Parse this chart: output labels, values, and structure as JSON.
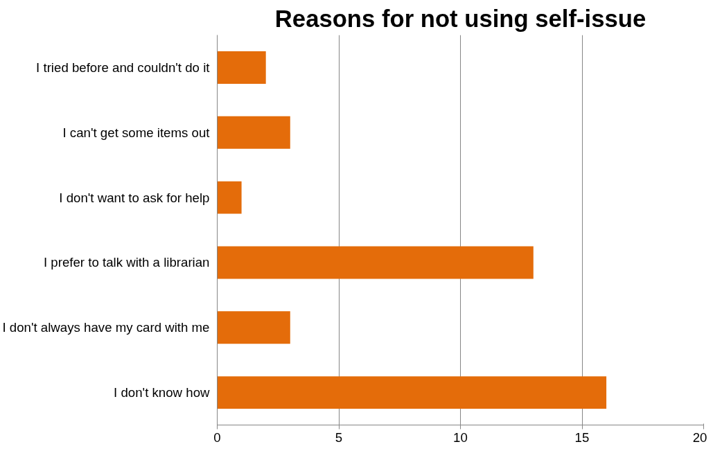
{
  "chart_data": {
    "type": "bar",
    "orientation": "horizontal",
    "title": "Reasons for not using self-issue",
    "categories": [
      "I tried before and couldn't do it",
      "I can't get some items out",
      "I don't want to ask for help",
      "I prefer to talk with a librarian",
      "I don't always have my card with me",
      "I don't know how"
    ],
    "values": [
      2,
      3,
      1,
      13,
      3,
      16
    ],
    "color": "#e46c0a",
    "xlim": [
      0,
      20
    ],
    "xticks": [
      0,
      5,
      10,
      15,
      20
    ],
    "grid": "x"
  }
}
